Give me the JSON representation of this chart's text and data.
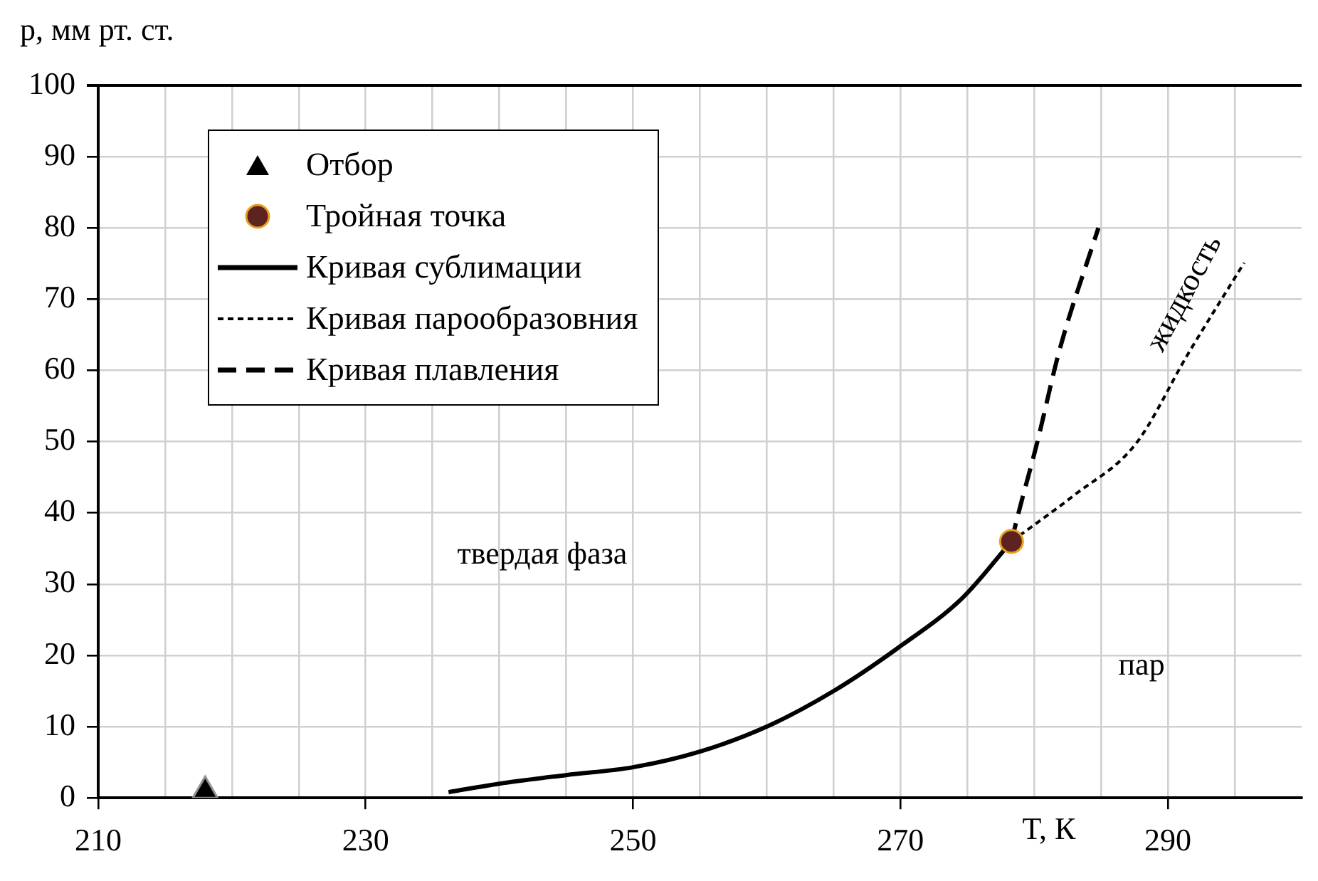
{
  "chart_data": {
    "type": "line",
    "xlabel": "T, К",
    "ylabel": "p, мм рт. ст.",
    "xlim": [
      210,
      300
    ],
    "xticks": [
      210,
      {
        "value": 215,
        "label": null
      },
      {
        "value": 220,
        "label": null
      },
      {
        "value": 225,
        "label": null
      },
      230,
      {
        "value": 235,
        "label": null
      },
      {
        "value": 240,
        "label": null
      },
      {
        "value": 245,
        "label": null
      },
      250,
      {
        "value": 255,
        "label": null
      },
      {
        "value": 260,
        "label": null
      },
      {
        "value": 265,
        "label": null
      },
      270,
      {
        "value": 275,
        "label": null
      },
      {
        "value": 280,
        "label": null
      },
      {
        "value": 285,
        "label": null
      },
      290,
      {
        "value": 295,
        "label": null
      }
    ],
    "ylim": [
      0,
      100
    ],
    "yticks": [
      0,
      10,
      20,
      30,
      40,
      50,
      60,
      70,
      80,
      90,
      100
    ],
    "grid": true,
    "legend": "top left",
    "series": [
      {
        "name": "Отбор",
        "type": "scatter",
        "marker": "triangle",
        "color": "#000000",
        "x": [
          218
        ],
        "values": [
          1
        ]
      },
      {
        "name": "Тройная точка",
        "type": "scatter",
        "marker": "circle",
        "color": "#5c2320",
        "x": [
          278.3
        ],
        "values": [
          36
        ]
      },
      {
        "name": "Кривая сублимации",
        "marker": "none",
        "line_style": "solid",
        "color": "#000000",
        "x": [
          236.2,
          240,
          245,
          250,
          255,
          260,
          265,
          269.7,
          274.6,
          278.3
        ],
        "values": [
          0.8,
          2,
          3.2,
          4.3,
          6.5,
          10,
          15,
          20.9,
          28,
          36
        ]
      },
      {
        "name": "Кривая парообразовния",
        "marker": "none",
        "line_style": "dotted",
        "color": "#000000",
        "x": [
          278.3,
          283,
          287.6,
          291.5,
          295.7
        ],
        "values": [
          36,
          42.5,
          49.7,
          62.3,
          75.1
        ]
      },
      {
        "name": "Кривая плавления",
        "marker": "none",
        "line_style": "dashed",
        "color": "#000000",
        "x": [
          278.3,
          278.8,
          280.2,
          281.9,
          284.8
        ],
        "values": [
          36,
          39.8,
          49.7,
          62.9,
          80
        ]
      }
    ],
    "annotations": [
      "твердая фаза",
      "пар",
      "жидкость"
    ]
  }
}
